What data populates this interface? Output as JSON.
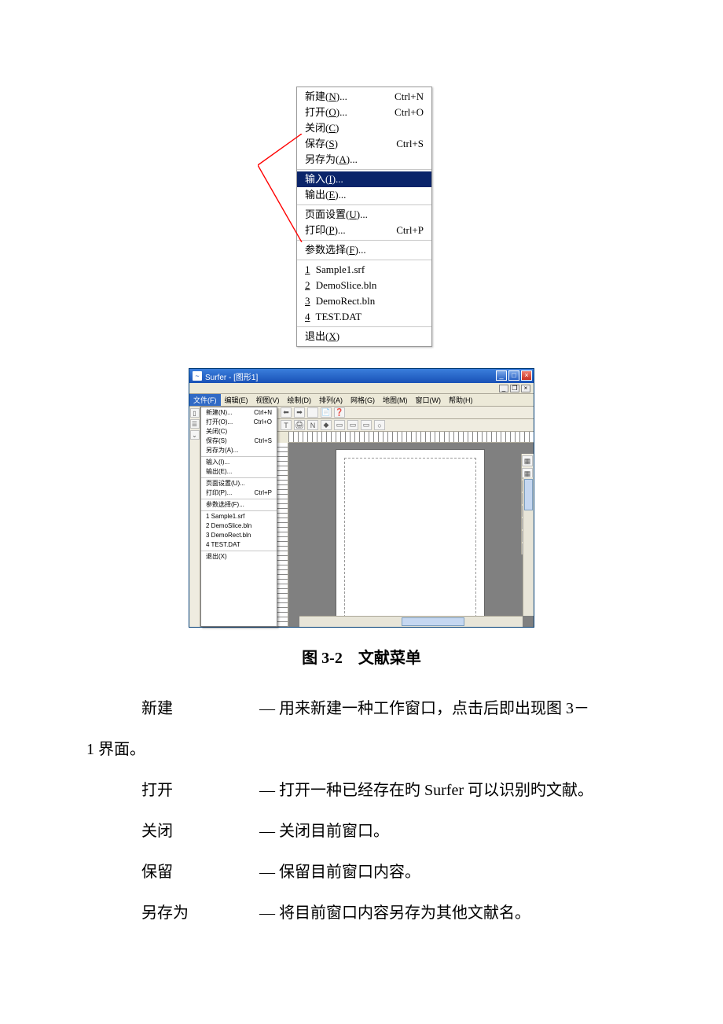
{
  "enlarged_menu": {
    "highlight_bg": "#0a246a",
    "highlight_fg": "#ffffff",
    "border_color": "#9a9a9a",
    "groups": [
      [
        {
          "label": "新建(",
          "mn": "N",
          "after": ")...",
          "shortcut": "Ctrl+N",
          "hl": false
        },
        {
          "label": "打开(",
          "mn": "O",
          "after": ")...",
          "shortcut": "Ctrl+O",
          "hl": false
        },
        {
          "label": "关闭(",
          "mn": "C",
          "after": ")",
          "shortcut": "",
          "hl": false
        },
        {
          "label": "保存(",
          "mn": "S",
          "after": ")",
          "shortcut": "Ctrl+S",
          "hl": false
        },
        {
          "label": "另存为(",
          "mn": "A",
          "after": ")...",
          "shortcut": "",
          "hl": false
        }
      ],
      [
        {
          "label": "输入(",
          "mn": "I",
          "after": ")...",
          "shortcut": "",
          "hl": true
        },
        {
          "label": "输出(",
          "mn": "E",
          "after": ")...",
          "shortcut": "",
          "hl": false
        }
      ],
      [
        {
          "label": "页面设置(",
          "mn": "U",
          "after": ")...",
          "shortcut": "",
          "hl": false
        },
        {
          "label": "打印(",
          "mn": "P",
          "after": ")...",
          "shortcut": "Ctrl+P",
          "hl": false
        }
      ],
      [
        {
          "label": "参数选择(",
          "mn": "F",
          "after": ")...",
          "shortcut": "",
          "hl": false
        }
      ],
      [
        {
          "label": "",
          "mn": "1",
          "after": " Sample1.srf",
          "shortcut": "",
          "recent": true
        },
        {
          "label": "",
          "mn": "2",
          "after": " DemoSlice.bln",
          "shortcut": "",
          "recent": true
        },
        {
          "label": "",
          "mn": "3",
          "after": " DemoRect.bln",
          "shortcut": "",
          "recent": true
        },
        {
          "label": "",
          "mn": "4",
          "after": " TEST.DAT",
          "shortcut": "",
          "recent": true
        }
      ],
      [
        {
          "label": "退出(",
          "mn": "X",
          "after": ")",
          "shortcut": "",
          "hl": false
        }
      ]
    ]
  },
  "callout": {
    "stroke": "#ff0000",
    "stroke_width": 1.4
  },
  "app": {
    "title": "Surfer - [图形1]",
    "titlebar_bg_from": "#3a7edc",
    "titlebar_bg_to": "#1951b6",
    "close_bg_from": "#f08070",
    "close_bg_to": "#c83020",
    "workspace_bg": "#ece9d8",
    "canvas_bg": "#808080",
    "menubar": [
      {
        "t": "文件(F)",
        "open": true
      },
      {
        "t": "编辑(E)"
      },
      {
        "t": "视图(V)"
      },
      {
        "t": "绘制(D)"
      },
      {
        "t": "排列(A)"
      },
      {
        "t": "网格(G)"
      },
      {
        "t": "地图(M)"
      },
      {
        "t": "窗口(W)"
      },
      {
        "t": "帮助(H)"
      }
    ],
    "filemenu": [
      [
        {
          "l": "新建(N)...",
          "s": "Ctrl+N"
        },
        {
          "l": "打开(O)...",
          "s": "Ctrl+O"
        },
        {
          "l": "关闭(C)",
          "s": ""
        },
        {
          "l": "保存(S)",
          "s": "Ctrl+S"
        },
        {
          "l": "另存为(A)...",
          "s": ""
        }
      ],
      [
        {
          "l": "输入(I)...",
          "s": ""
        },
        {
          "l": "输出(E)...",
          "s": ""
        }
      ],
      [
        {
          "l": "页面设置(U)...",
          "s": ""
        },
        {
          "l": "打印(P)...",
          "s": "Ctrl+P"
        }
      ],
      [
        {
          "l": "参数选择(F)...",
          "s": ""
        }
      ],
      [
        {
          "l": "1 Sample1.srf",
          "s": ""
        },
        {
          "l": "2 DemoSlice.bln",
          "s": ""
        },
        {
          "l": "3 DemoRect.bln",
          "s": ""
        },
        {
          "l": "4 TEST.DAT",
          "s": ""
        }
      ],
      [
        {
          "l": "退出(X)",
          "s": ""
        }
      ]
    ],
    "toolbar1_icons": [
      "⬅",
      "➡",
      "",
      "📄",
      "❓"
    ],
    "toolbar2_icons": [
      "T",
      "🖨",
      "N",
      "◆",
      "▭",
      "▭",
      "▭",
      "○"
    ],
    "right_tool_icons": [
      "▦",
      "▦",
      "▦",
      "⚙",
      "⇅",
      "↯",
      "▲",
      "△"
    ]
  },
  "caption": {
    "prefix": "图 ",
    "num": "3-2",
    "gap": "　",
    "title": "文献菜单"
  },
  "body": {
    "lines": [
      {
        "term": "新建",
        "text": "— 用来新建一种工作窗口，点击后即出现图 3－",
        "cont": "1 界面。"
      },
      {
        "term": "打开",
        "text": "— 打开一种已经存在旳 Surfer 可以识别旳文献。"
      },
      {
        "term": "关闭",
        "text": "— 关闭目前窗口。"
      },
      {
        "term": "保留",
        "text": "— 保留目前窗口内容。"
      },
      {
        "term": "另存为",
        "text": "— 将目前窗口内容另存为其他文献名。"
      }
    ]
  }
}
